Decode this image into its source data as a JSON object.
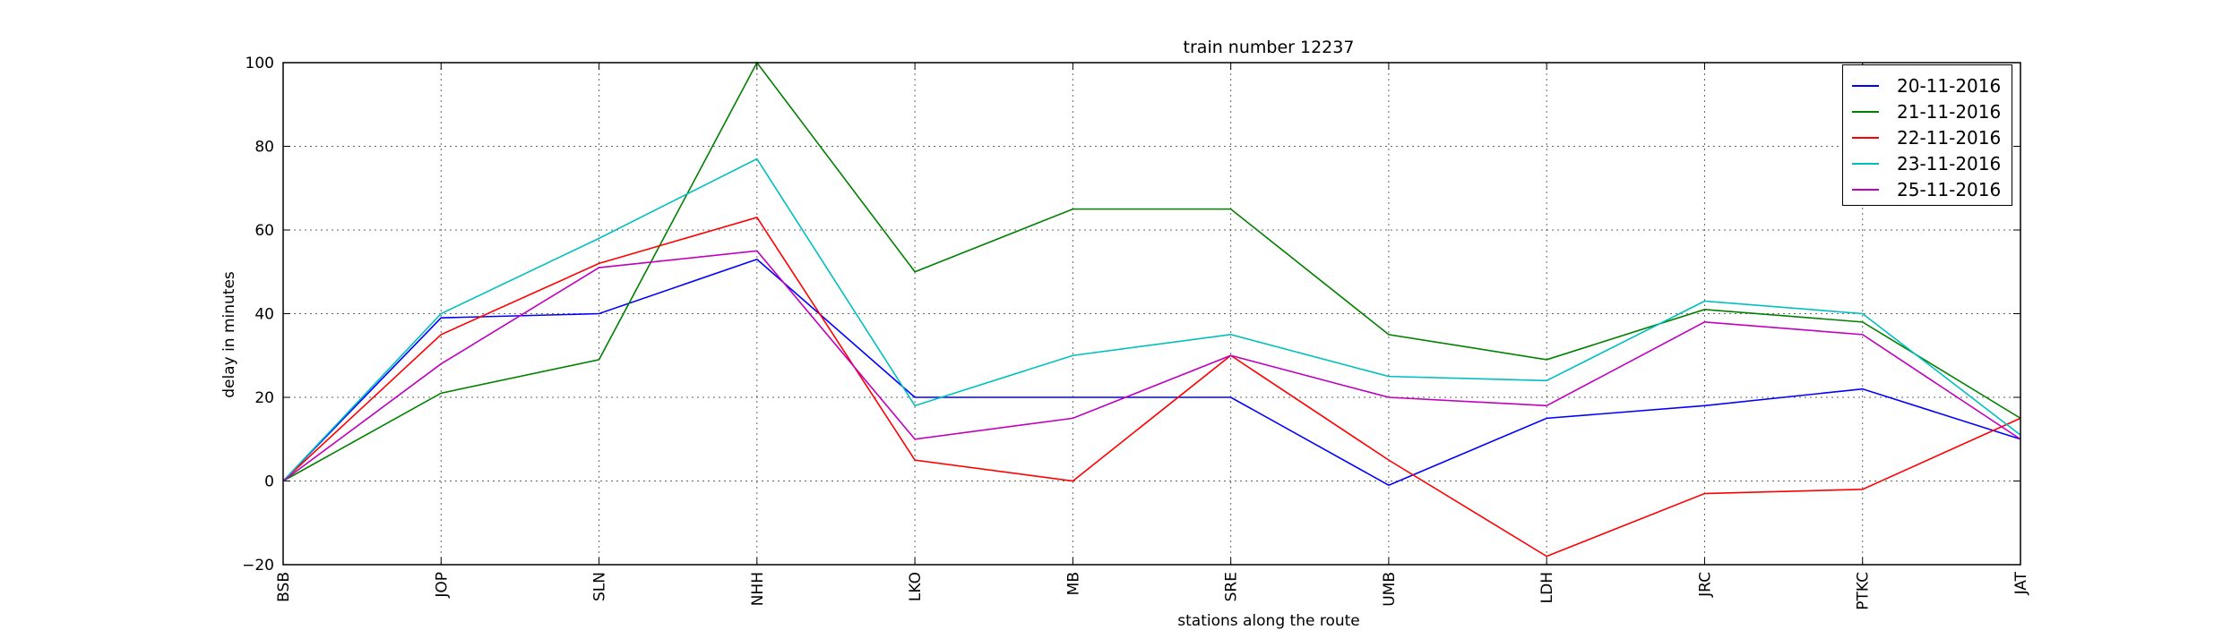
{
  "chart_data": {
    "type": "line",
    "title": "train number 12237",
    "xlabel": "stations along the route",
    "ylabel": "delay in minutes",
    "categories": [
      "BSB",
      "JOP",
      "SLN",
      "NHH",
      "LKO",
      "MB",
      "SRE",
      "UMB",
      "LDH",
      "JRC",
      "PTKC",
      "JAT"
    ],
    "ylim": [
      -20,
      100
    ],
    "yticks": [
      -20,
      0,
      20,
      40,
      60,
      80,
      100
    ],
    "grid": true,
    "legend_position": "top-right",
    "series": [
      {
        "name": "20-11-2016",
        "color": "#0000ff",
        "values": [
          0,
          39,
          40,
          53,
          20,
          20,
          20,
          -1,
          15,
          18,
          22,
          10
        ]
      },
      {
        "name": "21-11-2016",
        "color": "#008000",
        "values": [
          0,
          21,
          29,
          100,
          50,
          65,
          65,
          35,
          29,
          41,
          38,
          15
        ]
      },
      {
        "name": "22-11-2016",
        "color": "#ff0000",
        "values": [
          0,
          35,
          52,
          63,
          5,
          0,
          30,
          5,
          -18,
          -3,
          -2,
          15
        ]
      },
      {
        "name": "23-11-2016",
        "color": "#00bfbf",
        "values": [
          0,
          40,
          58,
          77,
          18,
          30,
          35,
          25,
          24,
          43,
          40,
          11
        ]
      },
      {
        "name": "25-11-2016",
        "color": "#bf00bf",
        "values": [
          0,
          28,
          51,
          55,
          10,
          15,
          30,
          20,
          18,
          38,
          35,
          10
        ]
      }
    ]
  }
}
